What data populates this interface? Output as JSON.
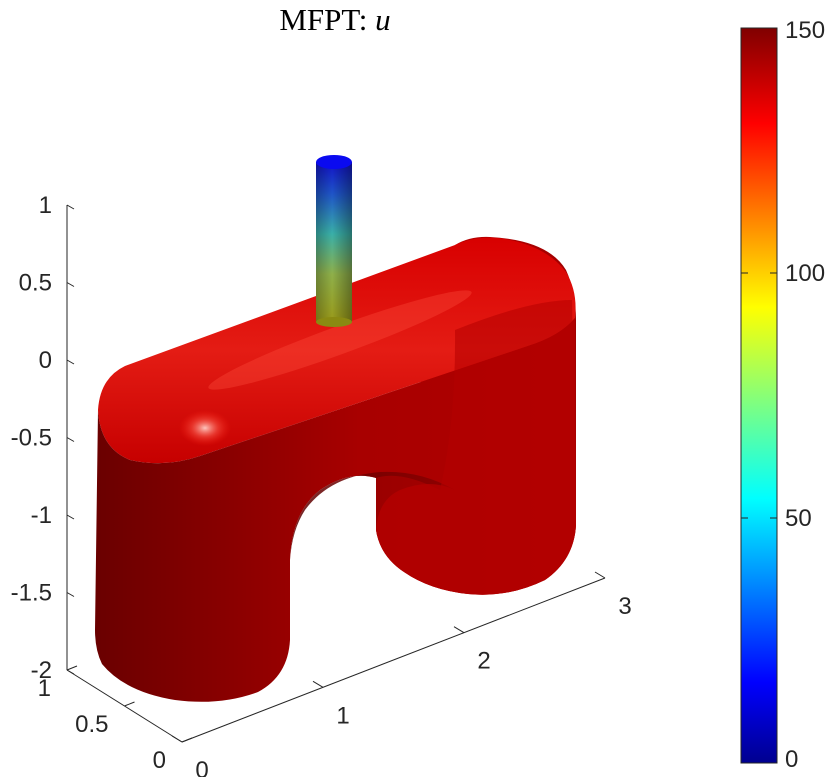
{
  "chart_data": {
    "type": "surface",
    "title": "MFPT: ",
    "title_variable": "u",
    "z_axis": {
      "range": [
        -2,
        1
      ],
      "ticks": [
        {
          "value": 1,
          "label": "1"
        },
        {
          "value": 0.5,
          "label": "0.5"
        },
        {
          "value": 0,
          "label": "0"
        },
        {
          "value": -0.5,
          "label": "-0.5"
        },
        {
          "value": -1,
          "label": "-1"
        },
        {
          "value": -1.5,
          "label": "-1.5"
        },
        {
          "value": -2,
          "label": "-2"
        }
      ]
    },
    "y_axis": {
      "range": [
        0,
        1
      ],
      "ticks": [
        {
          "value": 1,
          "label": "1"
        },
        {
          "value": 0.5,
          "label": "0.5"
        },
        {
          "value": 0,
          "label": "0"
        }
      ]
    },
    "x_axis": {
      "range": [
        0,
        3
      ],
      "ticks": [
        {
          "value": 0,
          "label": "0"
        },
        {
          "value": 1,
          "label": "1"
        },
        {
          "value": 2,
          "label": "2"
        },
        {
          "value": 3,
          "label": "3"
        }
      ]
    },
    "colorbar": {
      "colormap": "jet",
      "range": [
        0,
        150
      ],
      "ticks": [
        {
          "value": 150,
          "label": "150"
        },
        {
          "value": 100,
          "label": "100"
        },
        {
          "value": 50,
          "label": "50"
        },
        {
          "value": 0,
          "label": "0"
        }
      ]
    },
    "surface_color": "#c40000",
    "grid": false
  }
}
